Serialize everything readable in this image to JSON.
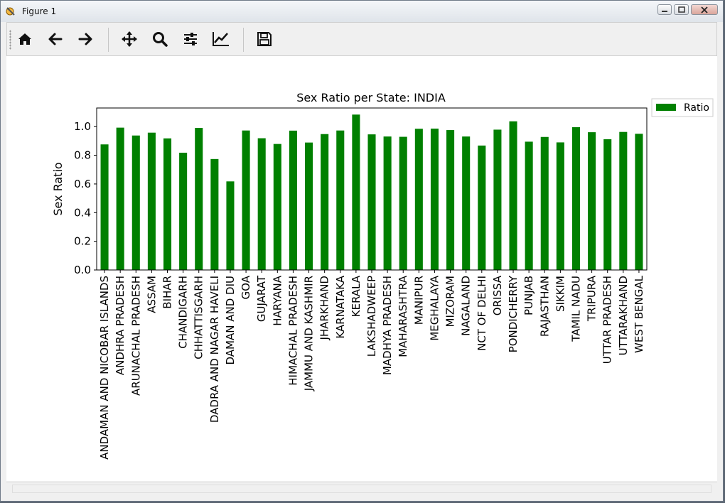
{
  "window": {
    "title": "Figure 1"
  },
  "toolbar": {
    "tools": [
      {
        "name": "home",
        "icon": "home-icon"
      },
      {
        "name": "back",
        "icon": "arrow-left-icon"
      },
      {
        "name": "forward",
        "icon": "arrow-right-icon"
      },
      {
        "name": "pan",
        "icon": "move-icon"
      },
      {
        "name": "zoom",
        "icon": "magnifier-icon"
      },
      {
        "name": "configure-subplots",
        "icon": "sliders-icon"
      },
      {
        "name": "edit-axes",
        "icon": "chart-line-icon"
      },
      {
        "name": "save",
        "icon": "floppy-disk-icon"
      }
    ]
  },
  "chart_data": {
    "type": "bar",
    "title": "Sex Ratio per State: INDIA",
    "xlabel": "",
    "ylabel": "Sex Ratio",
    "ylim": [
      0.0,
      1.13
    ],
    "yticks": [
      "0.0",
      "0.2",
      "0.4",
      "0.6",
      "0.8",
      "1.0"
    ],
    "legend": {
      "position": "outside-top-right",
      "entries": [
        "Ratio"
      ]
    },
    "bar_color": "#008000",
    "grid": false,
    "categories": [
      "ANDAMAN AND NICOBAR ISLANDS",
      "ANDHRA PRADESH",
      "ARUNACHAL PRADESH",
      "ASSAM",
      "BIHAR",
      "CHANDIGARH",
      "CHHATTISGARH",
      "DADRA AND NAGAR HAVELI",
      "DAMAN AND DIU",
      "GOA",
      "GUJARAT",
      "HARYANA",
      "HIMACHAL PRADESH",
      "JAMMU AND KASHMIR",
      "JHARKHAND",
      "KARNATAKA",
      "KERALA",
      "LAKSHADWEEP",
      "MADHYA PRADESH",
      "MAHARASHTRA",
      "MANIPUR",
      "MEGHALAYA",
      "MIZORAM",
      "NAGALAND",
      "NCT OF DELHI",
      "ORISSA",
      "PONDICHERRY",
      "PUNJAB",
      "RAJASTHAN",
      "SIKKIM",
      "TAMIL NADU",
      "TRIPURA",
      "UTTAR PRADESH",
      "UTTARAKHAND",
      "WEST BENGAL"
    ],
    "series": [
      {
        "name": "Ratio",
        "values": [
          0.876,
          0.993,
          0.938,
          0.958,
          0.918,
          0.818,
          0.991,
          0.774,
          0.618,
          0.973,
          0.919,
          0.879,
          0.972,
          0.889,
          0.948,
          0.973,
          1.084,
          0.946,
          0.931,
          0.929,
          0.985,
          0.986,
          0.976,
          0.931,
          0.868,
          0.979,
          1.037,
          0.895,
          0.928,
          0.89,
          0.996,
          0.961,
          0.912,
          0.963,
          0.95
        ]
      }
    ]
  }
}
